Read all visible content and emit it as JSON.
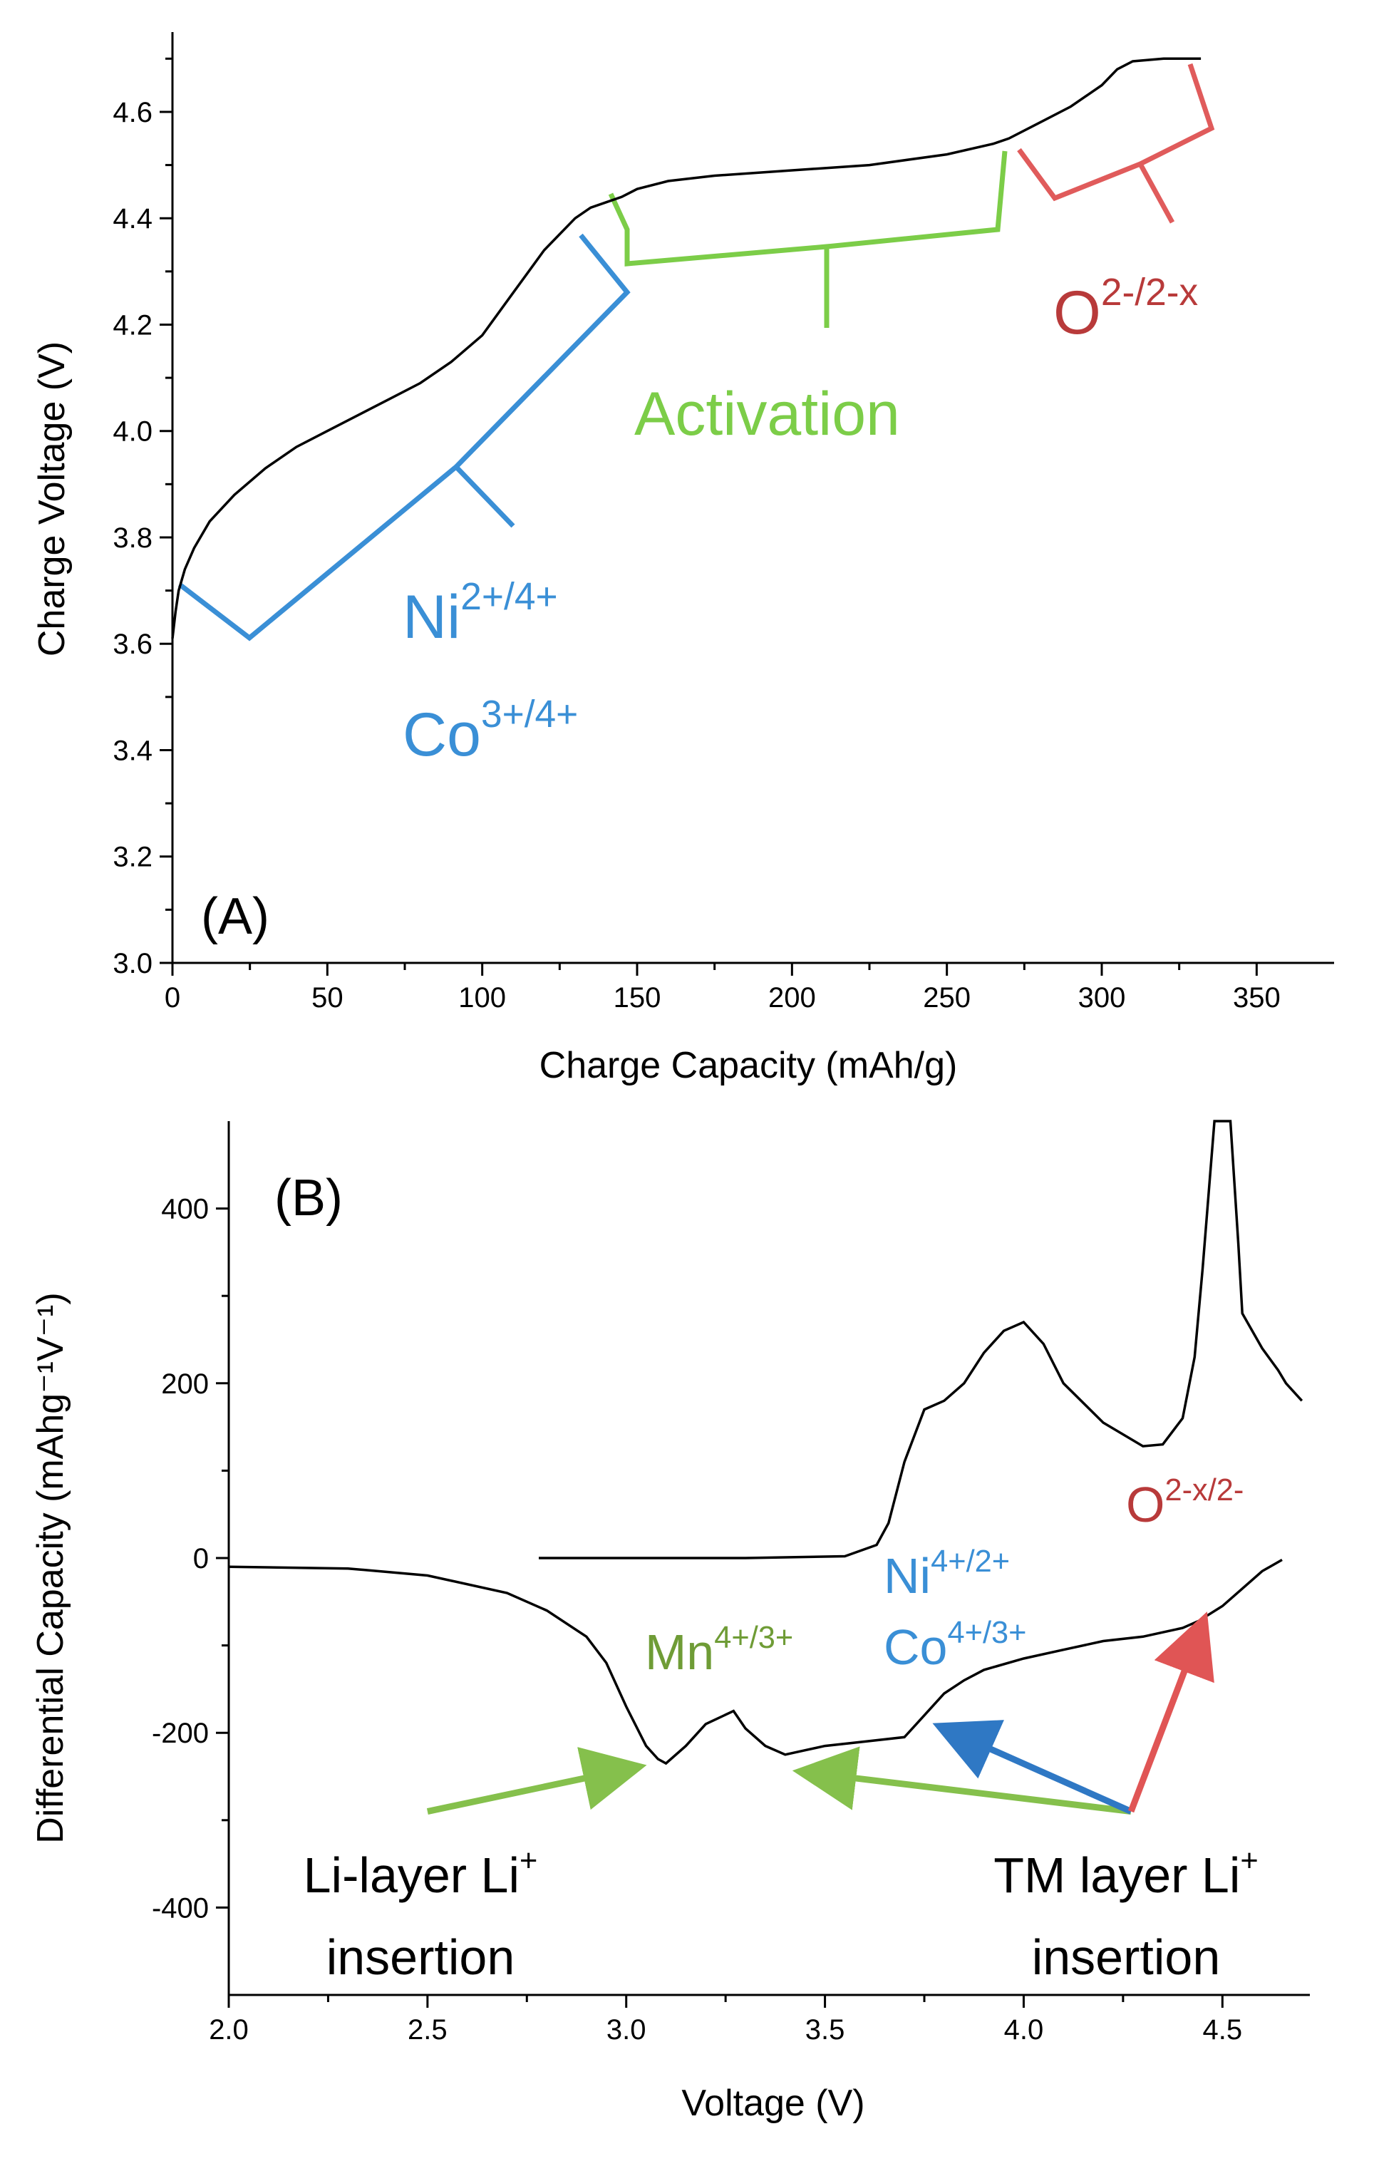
{
  "chart_data": [
    {
      "type": "line",
      "panel_label": "(A)",
      "xlabel": "Charge Capacity (mAh/g)",
      "ylabel": "Charge Voltage (V)",
      "xlim": [
        0,
        375
      ],
      "ylim": [
        3.0,
        4.75
      ],
      "xticks": [
        "0",
        "50",
        "100",
        "150",
        "200",
        "250",
        "300",
        "350"
      ],
      "yticks": [
        "3.0",
        "3.2",
        "3.4",
        "3.6",
        "3.8",
        "4.0",
        "4.2",
        "4.4",
        "4.6"
      ],
      "series": [
        {
          "name": "charge curve",
          "x": [
            0,
            1,
            2,
            4,
            7,
            12,
            20,
            30,
            40,
            50,
            60,
            70,
            80,
            90,
            100,
            110,
            115,
            120,
            125,
            130,
            135,
            140,
            145,
            150,
            160,
            175,
            200,
            225,
            250,
            265,
            270,
            280,
            290,
            300,
            305,
            310,
            320,
            332
          ],
          "y": [
            3.61,
            3.66,
            3.7,
            3.74,
            3.78,
            3.83,
            3.88,
            3.93,
            3.97,
            4.0,
            4.03,
            4.06,
            4.09,
            4.13,
            4.18,
            4.26,
            4.3,
            4.34,
            4.37,
            4.4,
            4.42,
            4.43,
            4.44,
            4.455,
            4.47,
            4.48,
            4.49,
            4.5,
            4.52,
            4.54,
            4.55,
            4.58,
            4.61,
            4.65,
            4.68,
            4.695,
            4.7,
            4.7
          ]
        }
      ],
      "annotations": [
        {
          "id": "ni-co",
          "base1": "Ni",
          "sup1": "2+/4+",
          "base2": "Co",
          "sup2": "3+/4+",
          "color": "#3a8fd6",
          "x_range": [
            2,
            148
          ]
        },
        {
          "id": "activation",
          "text": "Activation",
          "color": "#7ccd48",
          "x_range": [
            143,
            270
          ]
        },
        {
          "id": "oxygen",
          "base": "O",
          "sup": "2-/2-x",
          "color": "#b83a3a",
          "brace_color": "#e05b5b",
          "x_range": [
            275,
            340
          ]
        }
      ]
    },
    {
      "type": "line",
      "panel_label": "(B)",
      "xlabel": "Voltage (V)",
      "ylabel": "Differential Capacity (mAhg⁻¹V⁻¹)",
      "xlim": [
        2.0,
        4.72
      ],
      "ylim": [
        -500,
        500
      ],
      "xticks": [
        "2.0",
        "2.5",
        "3.0",
        "3.5",
        "4.0",
        "4.5"
      ],
      "yticks": [
        "-400",
        "-200",
        "0",
        "200",
        "400"
      ],
      "series": [
        {
          "name": "charge",
          "x": [
            2.78,
            3.0,
            3.3,
            3.55,
            3.63,
            3.66,
            3.7,
            3.75,
            3.8,
            3.85,
            3.9,
            3.95,
            4.0,
            4.05,
            4.1,
            4.2,
            4.3,
            4.35,
            4.4,
            4.43,
            4.45,
            4.48,
            4.52,
            4.54,
            4.55,
            4.6,
            4.64,
            4.66,
            4.7
          ],
          "y": [
            0,
            0,
            0,
            2,
            15,
            40,
            110,
            170,
            180,
            200,
            235,
            260,
            270,
            245,
            200,
            155,
            128,
            130,
            160,
            230,
            330,
            500,
            500,
            360,
            280,
            240,
            215,
            200,
            180
          ]
        },
        {
          "name": "discharge",
          "x": [
            2.0,
            2.3,
            2.5,
            2.7,
            2.8,
            2.9,
            2.95,
            3.0,
            3.05,
            3.08,
            3.1,
            3.15,
            3.2,
            3.27,
            3.3,
            3.35,
            3.4,
            3.45,
            3.5,
            3.6,
            3.7,
            3.75,
            3.8,
            3.85,
            3.9,
            4.0,
            4.1,
            4.2,
            4.3,
            4.4,
            4.44,
            4.5,
            4.55,
            4.6,
            4.65
          ],
          "y": [
            -10,
            -12,
            -20,
            -40,
            -60,
            -90,
            -120,
            -170,
            -215,
            -230,
            -235,
            -215,
            -190,
            -175,
            -195,
            -215,
            -225,
            -220,
            -215,
            -210,
            -205,
            -180,
            -155,
            -140,
            -128,
            -115,
            -105,
            -95,
            -90,
            -80,
            -72,
            -55,
            -35,
            -15,
            -2
          ]
        }
      ],
      "annotations": [
        {
          "id": "mn",
          "base": "Mn",
          "sup": "4+/3+",
          "color": "#6f9c36"
        },
        {
          "id": "ni-b",
          "base": "Ni",
          "sup": "4+/2+",
          "color": "#3a8fd6"
        },
        {
          "id": "co-b",
          "base": "Co",
          "sup": "4+/3+",
          "color": "#3a8fd6"
        },
        {
          "id": "o-b",
          "base": "O",
          "sup": "2-x/2-",
          "color": "#b83a3a"
        },
        {
          "id": "li-layer",
          "line1": "Li-layer Li",
          "line1_sup": "+",
          "line2": "insertion",
          "color": "#000000"
        },
        {
          "id": "tm-layer",
          "line1": "TM layer Li",
          "line1_sup": "+",
          "line2": "insertion",
          "color": "#000000"
        }
      ],
      "arrows": [
        {
          "from": [
            2.5,
            -290
          ],
          "to": [
            3.02,
            -240
          ],
          "color": "#85c04c"
        },
        {
          "from": [
            4.27,
            -290
          ],
          "to": [
            3.45,
            -245
          ],
          "color": "#85c04c"
        },
        {
          "from": [
            4.27,
            -290
          ],
          "to": [
            3.8,
            -195
          ],
          "color": "#2f78c4"
        },
        {
          "from": [
            4.27,
            -290
          ],
          "to": [
            4.45,
            -75
          ],
          "color": "#e05555"
        }
      ]
    }
  ]
}
